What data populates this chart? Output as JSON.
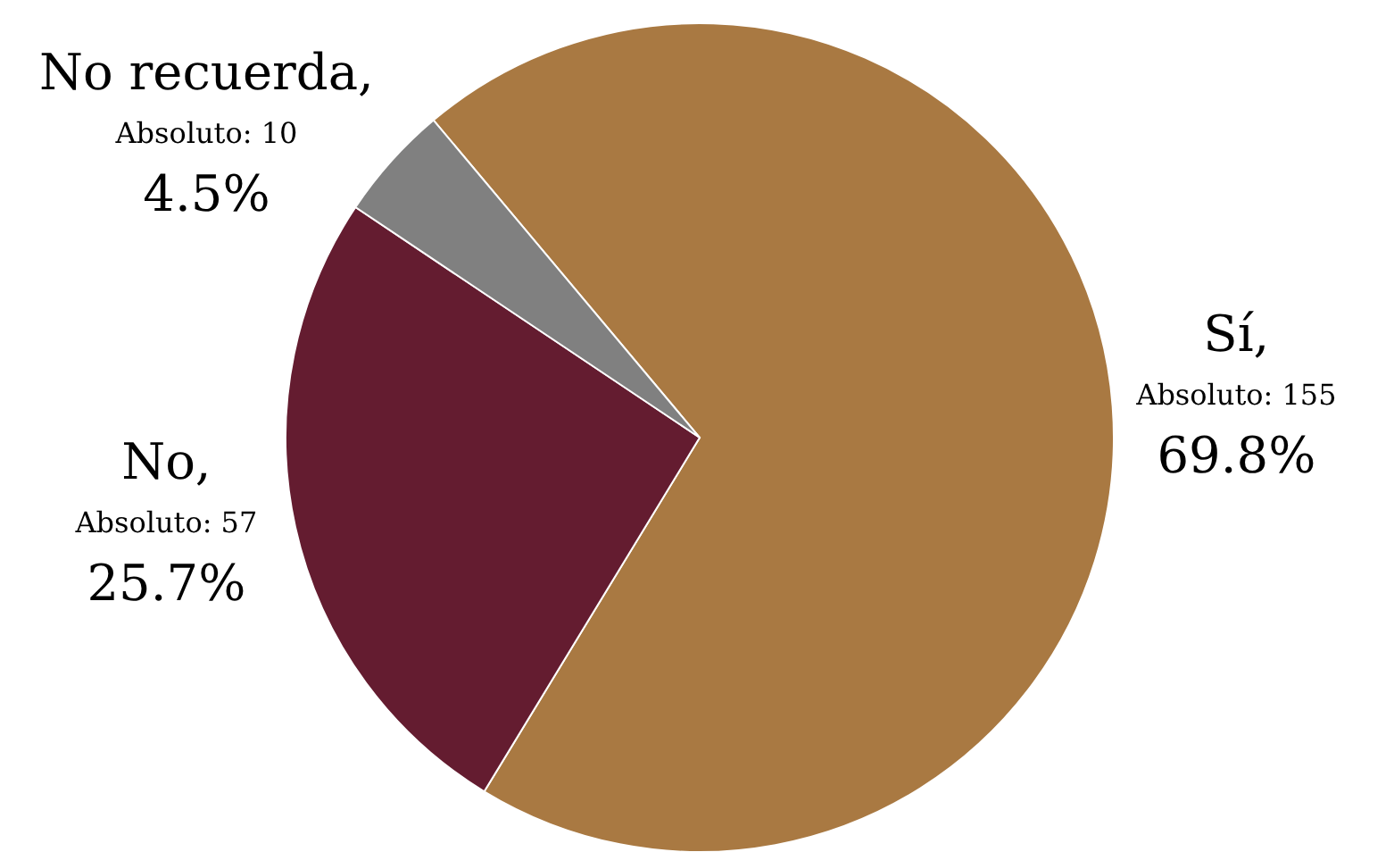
{
  "chart_data": {
    "type": "pie",
    "categories": [
      "Sí",
      "No",
      "No recuerda"
    ],
    "values": [
      155,
      57,
      10
    ],
    "colors": [
      "#a97942",
      "#641c30",
      "#808080"
    ],
    "value_labels": [
      ",\nAbsoluto: 155\n69.8%",
      ",\nAbsoluto: 57\n25.7%",
      ",\nAbsoluto: 10\n4.5%"
    ]
  }
}
